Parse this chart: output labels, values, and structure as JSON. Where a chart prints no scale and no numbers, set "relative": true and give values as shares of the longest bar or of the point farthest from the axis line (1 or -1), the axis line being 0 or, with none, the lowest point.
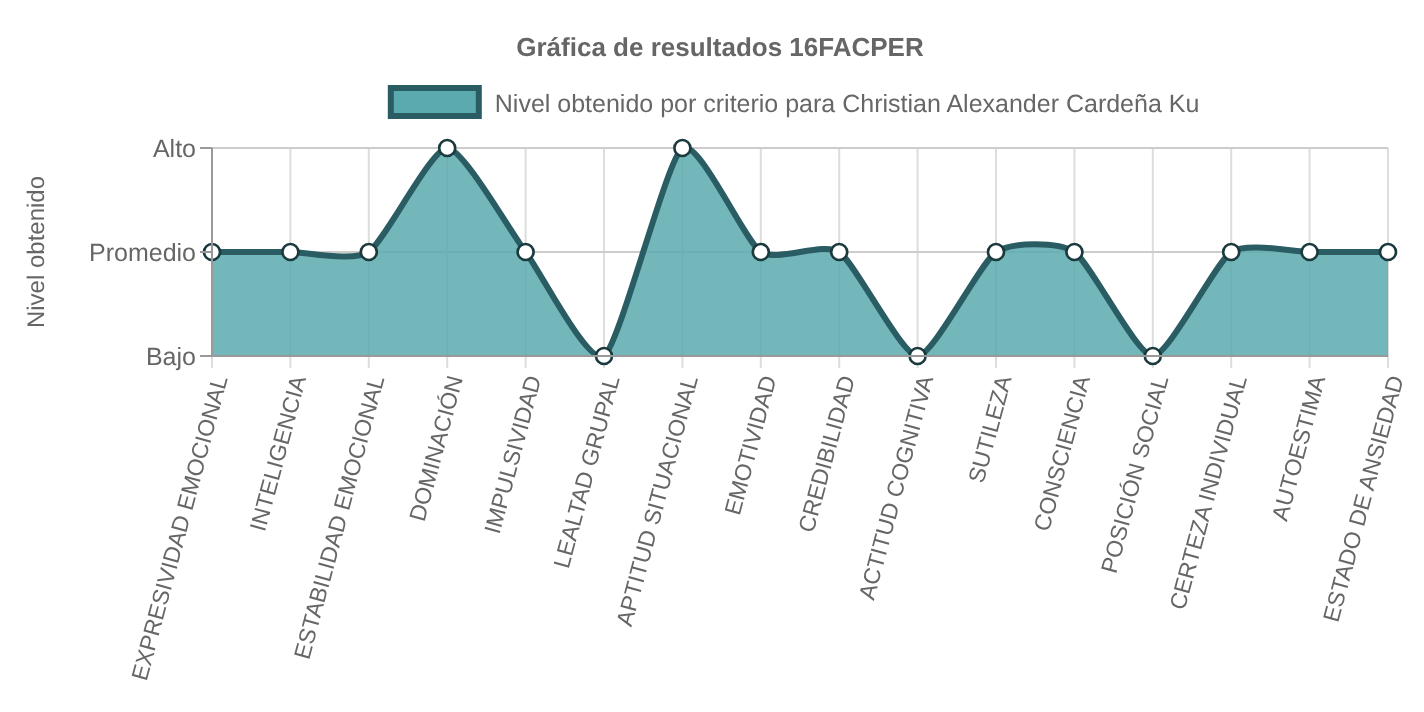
{
  "chart_data": {
    "type": "area",
    "title": "Gráfica de resultados 16FACPER",
    "ylabel": "Nivel obtenido",
    "categories": [
      "EXPRESIVIDAD EMOCIONAL",
      "INTELIGENCIA",
      "ESTABILIDAD EMOCIONAL",
      "DOMINACIÓN",
      "IMPULSIVIDAD",
      "LEALTAD GRUPAL",
      "APTITUD SITUACIONAL",
      "EMOTIVIDAD",
      "CREDIBILIDAD",
      "ACTITUD COGNITIVA",
      "SUTILEZA",
      "CONSCIENCIA",
      "POSICIÓN SOCIAL",
      "CERTEZA INDIVIDUAL",
      "AUTOESTIMA",
      "ESTADO DE ANSIEDAD"
    ],
    "series": [
      {
        "name": "Nivel obtenido por criterio para Christian Alexander Cardeña Ku",
        "color": "#2a5c63",
        "values": [
          0.5,
          0.5,
          0.5,
          1,
          0.5,
          0,
          1,
          0.5,
          0.5,
          0,
          0.5,
          0.5,
          0,
          0.5,
          0.5,
          0.5
        ]
      }
    ],
    "relative": true,
    "annotations": [
      "Bajo",
      "Promedio",
      "Alto"
    ],
    "grid": true,
    "legend": "top",
    "marker": "circle"
  }
}
